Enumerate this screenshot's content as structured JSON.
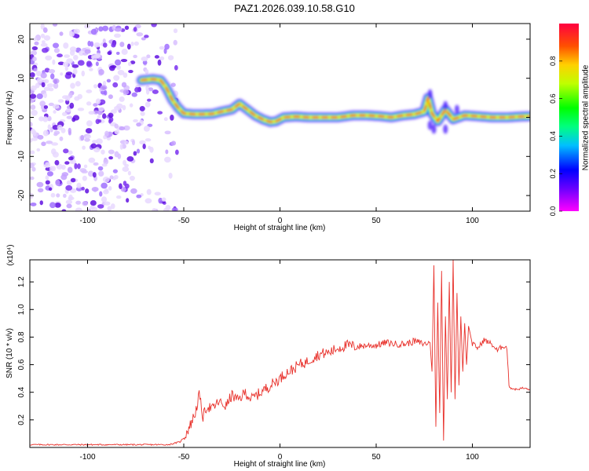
{
  "figure": {
    "title": "PAZ1.2026.039.10.58.G10"
  },
  "chart_data": [
    {
      "type": "heatmap",
      "title": "PAZ1.2026.039.10.58.G10",
      "xlabel": "Height of straight line (km)",
      "ylabel": "Frequency (Hz)",
      "xlim": [
        -130,
        130
      ],
      "ylim": [
        -24,
        24
      ],
      "xticks": [
        -100,
        -50,
        0,
        50,
        100
      ],
      "xtick_labels": [
        "-100",
        "-50",
        "0",
        "50",
        "100"
      ],
      "yticks": [
        20,
        10,
        0,
        -10,
        -20
      ],
      "ytick_labels": [
        "20",
        "10",
        "0",
        "-10",
        "-20"
      ],
      "noise_region_km": [
        -130,
        -52
      ],
      "ridge": {
        "description": "peak spectral amplitude frequency vs height",
        "x": [
          -72,
          -66,
          -62,
          -59,
          -56,
          -53,
          -50,
          -45,
          -40,
          -35,
          -30,
          -25,
          -21,
          -17,
          -13,
          -9,
          -5,
          -2,
          2,
          8,
          15,
          22,
          30,
          38,
          45,
          52,
          58,
          64,
          70,
          75,
          77,
          79,
          82,
          86,
          90,
          96,
          102,
          110,
          118,
          125,
          130
        ],
        "y": [
          9.5,
          9.8,
          9.5,
          7.5,
          4.5,
          2.5,
          1.0,
          0.8,
          0.8,
          0.9,
          1.5,
          2.0,
          3.5,
          2.0,
          0.5,
          -0.5,
          -1.2,
          -1.0,
          0.0,
          0.2,
          0.0,
          0.0,
          0.0,
          0.5,
          0.5,
          0.3,
          0.0,
          0.5,
          0.8,
          1.5,
          5.0,
          1.0,
          -1.0,
          2.0,
          -0.5,
          0.5,
          0.3,
          0.0,
          0.0,
          0.2,
          0.3
        ]
      },
      "colorbar": {
        "label": "Normalized spectral amplitude",
        "range": [
          0.0,
          1.0
        ],
        "ticks": [
          0.0,
          0.2,
          0.4,
          0.6,
          0.8
        ],
        "tick_labels": [
          "0.0",
          "0.2",
          "0.4",
          "0.6",
          "0.8"
        ]
      }
    },
    {
      "type": "line",
      "xlabel": "Height of straight line (km)",
      "ylabel": "SNR (10 * v/v)",
      "yscale_label": "(x10⁴)",
      "xlim": [
        -130,
        130
      ],
      "ylim": [
        0,
        1.36
      ],
      "xticks": [
        -100,
        -50,
        0,
        50,
        100
      ],
      "xtick_labels": [
        "-100",
        "-50",
        "0",
        "50",
        "100"
      ],
      "yticks": [
        0.2,
        0.4,
        0.6,
        0.8,
        1.0,
        1.2
      ],
      "ytick_labels": [
        "0.2",
        "0.4",
        "0.6",
        "0.8",
        "1.0",
        "1.2"
      ],
      "series": [
        {
          "name": "SNR",
          "color": "#e8302a",
          "x": [
            -130,
            -100,
            -70,
            -58,
            -52,
            -50,
            -47,
            -44,
            -42,
            -40,
            -38,
            -35,
            -32,
            -28,
            -25,
            -22,
            -18,
            -15,
            -12,
            -8,
            -5,
            -2,
            0,
            3,
            6,
            10,
            14,
            18,
            22,
            26,
            30,
            35,
            40,
            45,
            50,
            55,
            60,
            65,
            70,
            75,
            78,
            79,
            80,
            81,
            82,
            83,
            84,
            85,
            86,
            87,
            88,
            89,
            90,
            91,
            92,
            93,
            94,
            95,
            96,
            97,
            98,
            100,
            103,
            106,
            110,
            113,
            116,
            118,
            119,
            120,
            123,
            126,
            130
          ],
          "y": [
            0.02,
            0.02,
            0.02,
            0.02,
            0.04,
            0.07,
            0.15,
            0.25,
            0.38,
            0.22,
            0.3,
            0.28,
            0.33,
            0.3,
            0.38,
            0.34,
            0.4,
            0.35,
            0.38,
            0.42,
            0.45,
            0.48,
            0.5,
            0.54,
            0.56,
            0.6,
            0.62,
            0.66,
            0.68,
            0.69,
            0.72,
            0.74,
            0.73,
            0.74,
            0.74,
            0.76,
            0.75,
            0.75,
            0.77,
            0.75,
            0.76,
            0.55,
            1.32,
            0.15,
            1.05,
            0.25,
            1.28,
            0.05,
            0.95,
            0.35,
            1.2,
            0.4,
            1.36,
            0.35,
            1.12,
            0.45,
            0.95,
            0.55,
            0.9,
            0.6,
            0.88,
            0.75,
            0.72,
            0.78,
            0.75,
            0.7,
            0.74,
            0.72,
            0.45,
            0.43,
            0.42,
            0.43,
            0.42
          ]
        }
      ]
    }
  ]
}
